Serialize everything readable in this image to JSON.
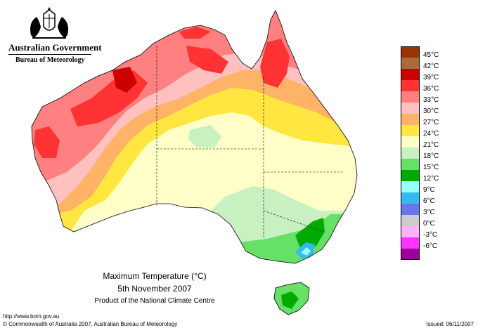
{
  "header": {
    "organization": "Australian Government",
    "bureau": "Bureau of Meteorology",
    "crest_icon": "coat-of-arms-icon"
  },
  "map": {
    "title": "Maximum Temperature (°C)",
    "date": "5th November 2007",
    "product": "Product of the National Climate Centre",
    "region": "Australia"
  },
  "legend": [
    {
      "label": "45°C",
      "color": "#993300"
    },
    {
      "label": "42°C",
      "color": "#A86B40"
    },
    {
      "label": "39°C",
      "color": "#CC0000"
    },
    {
      "label": "36°C",
      "color": "#FF3333"
    },
    {
      "label": "33°C",
      "color": "#FF8080"
    },
    {
      "label": "30°C",
      "color": "#FFC0C0"
    },
    {
      "label": "27°C",
      "color": "#FFB366"
    },
    {
      "label": "24°C",
      "color": "#FFE640"
    },
    {
      "label": "21°C",
      "color": "#FFFFC8"
    },
    {
      "label": "18°C",
      "color": "#C8F0C0"
    },
    {
      "label": "15°C",
      "color": "#66E066"
    },
    {
      "label": "12°C",
      "color": "#00AA00"
    },
    {
      "label": "9°C",
      "color": "#99FFFF"
    },
    {
      "label": "6°C",
      "color": "#33BBEE"
    },
    {
      "label": "3°C",
      "color": "#6677EE"
    },
    {
      "label": "0°C",
      "color": "#CCCCCC"
    },
    {
      "label": "-3°C",
      "color": "#FFB3FF"
    },
    {
      "label": "-6°C",
      "color": "#FF33FF"
    },
    {
      "label": "",
      "color": "#990099"
    }
  ],
  "footer": {
    "url": "http://www.bom.gov.au",
    "copyright": "© Commonwealth of Australia 2007, Australian Bureau of Meteorology",
    "issued": "Issued: 06/11/2007"
  }
}
